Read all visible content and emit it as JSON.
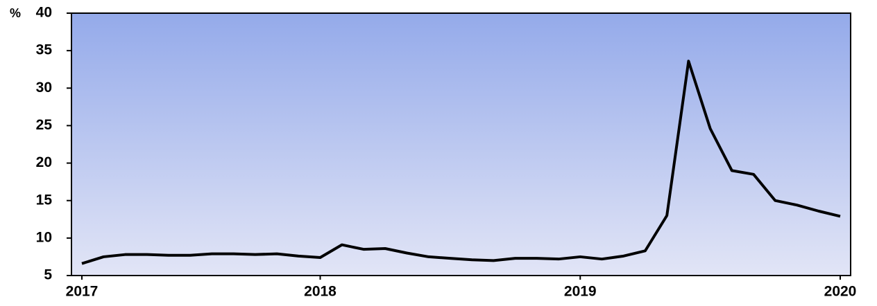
{
  "chart_data": {
    "type": "line",
    "y_unit": "%",
    "categories": [
      "2017",
      null,
      null,
      null,
      null,
      null,
      null,
      null,
      null,
      null,
      null,
      "2018",
      null,
      null,
      null,
      null,
      null,
      null,
      null,
      null,
      null,
      null,
      null,
      "2019",
      null,
      null,
      null,
      null,
      null,
      null,
      null,
      null,
      null,
      null,
      null,
      "2020"
    ],
    "series": [
      {
        "name": null,
        "color": "#000000",
        "values": [
          6.6,
          7.5,
          7.8,
          7.8,
          7.7,
          7.7,
          7.9,
          7.9,
          7.8,
          7.9,
          7.6,
          7.4,
          9.1,
          8.5,
          8.6,
          8.0,
          7.5,
          7.3,
          7.1,
          7.0,
          7.3,
          7.3,
          7.2,
          7.5,
          7.2,
          7.6,
          8.3,
          13.0,
          33.6,
          24.6,
          19.0,
          18.5,
          15.0,
          14.4,
          13.6,
          12.9
        ]
      }
    ],
    "ylim": [
      5,
      40
    ],
    "yticks": [
      5,
      10,
      15,
      20,
      25,
      30,
      35,
      40
    ]
  }
}
